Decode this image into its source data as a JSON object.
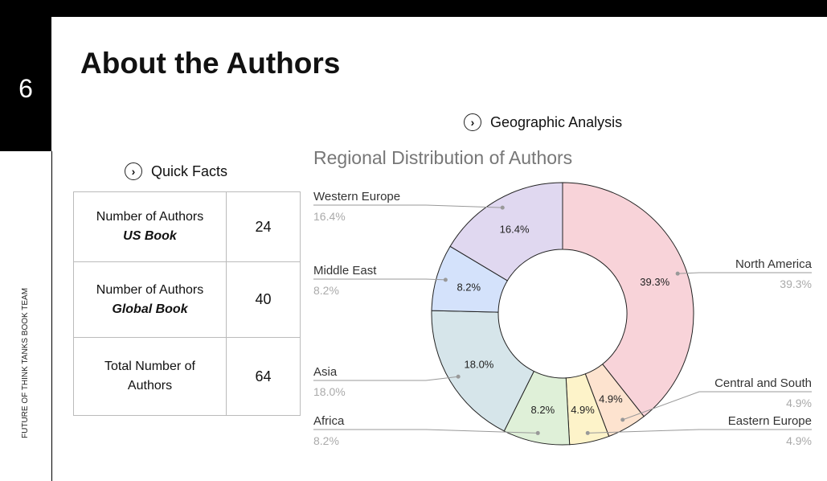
{
  "page_number": "6",
  "sidebar_text": "FUTURE OF THINK TANKS BOOK TEAM",
  "title": "About the Authors",
  "quick_facts": {
    "heading": "Quick Facts",
    "rows": [
      {
        "label": "Number of Authors",
        "sub": "US Book",
        "value": "24"
      },
      {
        "label": "Number of Authors",
        "sub": "Global Book",
        "value": "40"
      },
      {
        "label": "Total Number of",
        "sub": "Authors",
        "value": "64"
      }
    ]
  },
  "geo": {
    "heading": "Geographic Analysis"
  },
  "chart_data": {
    "type": "pie",
    "donut": true,
    "title": "Regional Distribution of Authors",
    "slices": [
      {
        "name": "North America",
        "value": 39.3,
        "label": "39.3%",
        "color": "#f8d3d9"
      },
      {
        "name": "Central and South",
        "value": 4.9,
        "label": "4.9%",
        "color": "#fde3cf"
      },
      {
        "name": "Eastern Europe",
        "value": 4.9,
        "label": "4.9%",
        "color": "#fdf3c9"
      },
      {
        "name": "Africa",
        "value": 8.2,
        "label": "8.2%",
        "color": "#dff0d8"
      },
      {
        "name": "Asia",
        "value": 18.0,
        "label": "18.0%",
        "color": "#d6e5ea"
      },
      {
        "name": "Middle East",
        "value": 8.2,
        "label": "8.2%",
        "color": "#d4e2fb"
      },
      {
        "name": "Western Europe",
        "value": 16.4,
        "label": "16.4%",
        "color": "#e0d8f0"
      }
    ]
  }
}
